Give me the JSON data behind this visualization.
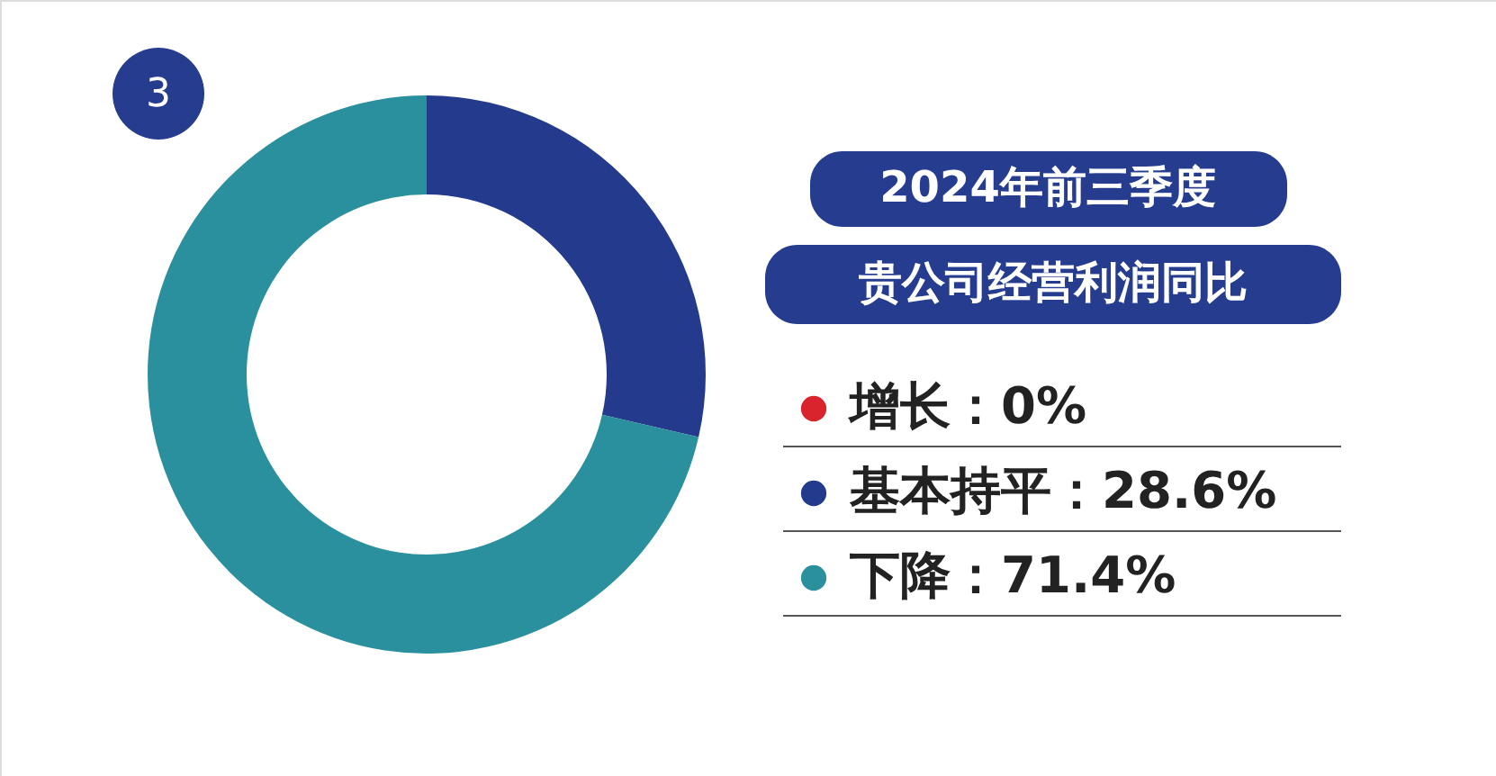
{
  "chart_data": {
    "type": "donut",
    "title": "2024年前三季度",
    "subtitle": "贵公司经营利润同比",
    "annotations": [
      "3"
    ],
    "categories": [
      "增长",
      "基本持平",
      "下降"
    ],
    "values": [
      0,
      28.6,
      71.4
    ],
    "value_labels": [
      "0%",
      "28.6%",
      "71.4%"
    ],
    "colors": [
      "#d9232d",
      "#243b8d",
      "#2b909e"
    ],
    "legend": "right"
  }
}
